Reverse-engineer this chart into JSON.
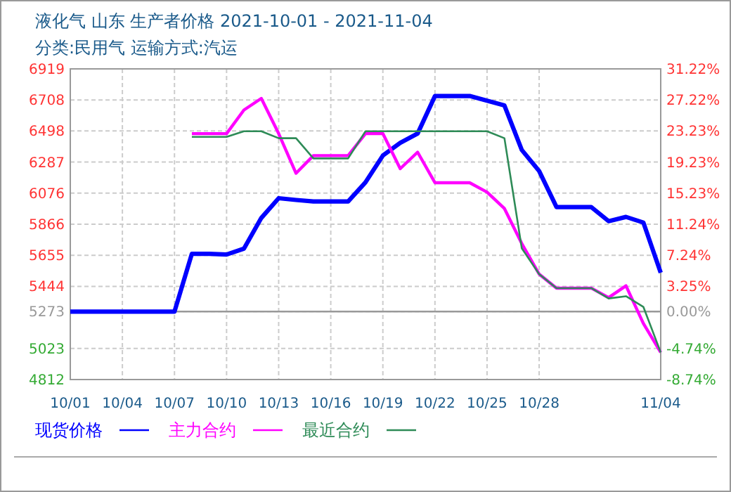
{
  "chart_data": {
    "type": "line",
    "title": "液化气 山东 生产者价格 2021-10-01 - 2021-11-04",
    "subtitle": "分类:民用气 运输方式:汽运",
    "x": [
      "2021-10-01",
      "2021-10-02",
      "2021-10-03",
      "2021-10-04",
      "2021-10-05",
      "2021-10-06",
      "2021-10-07",
      "2021-10-08",
      "2021-10-09",
      "2021-10-10",
      "2021-10-11",
      "2021-10-12",
      "2021-10-13",
      "2021-10-14",
      "2021-10-15",
      "2021-10-16",
      "2021-10-17",
      "2021-10-18",
      "2021-10-19",
      "2021-10-20",
      "2021-10-21",
      "2021-10-22",
      "2021-10-23",
      "2021-10-24",
      "2021-10-25",
      "2021-10-26",
      "2021-10-27",
      "2021-10-28",
      "2021-10-29",
      "2021-10-30",
      "2021-10-31",
      "2021-11-01",
      "2021-11-02",
      "2021-11-03",
      "2021-11-04"
    ],
    "series": [
      {
        "name": "现货价格",
        "color": "#0000ff",
        "values": [
          5273,
          5273,
          5273,
          5273,
          5273,
          5273,
          5273,
          5665,
          5665,
          5660,
          5700,
          5908,
          6042,
          6030,
          6020,
          6020,
          6020,
          6150,
          6331,
          6417,
          6480,
          6735,
          6735,
          6735,
          6703,
          6671,
          6369,
          6226,
          5982,
          5982,
          5982,
          5886,
          5915,
          5877,
          5537
        ]
      },
      {
        "name": "主力合约",
        "color": "#ff00ff",
        "values": [
          null,
          null,
          null,
          null,
          null,
          null,
          null,
          6480,
          6480,
          6480,
          6640,
          6719,
          6480,
          6211,
          6331,
          6331,
          6331,
          6480,
          6480,
          6242,
          6354,
          6147,
          6147,
          6147,
          6083,
          5972,
          5734,
          5527,
          5432,
          5432,
          5432,
          5368,
          5448,
          5193,
          4996
        ]
      },
      {
        "name": "最近合约",
        "color": "#2e8b57",
        "values": [
          null,
          null,
          null,
          null,
          null,
          null,
          null,
          6458,
          6458,
          6458,
          6496,
          6496,
          6449,
          6449,
          6312,
          6312,
          6312,
          6496,
          6496,
          6496,
          6496,
          6496,
          6496,
          6496,
          6496,
          6449,
          5702,
          5527,
          5432,
          5432,
          5432,
          5362,
          5377,
          5305,
          4996
        ]
      }
    ],
    "xlim": [
      "2021-10-01",
      "2021-11-04"
    ],
    "xticks": [
      {
        "value": "2021-10-01",
        "label": "10/01"
      },
      {
        "value": "2021-10-04",
        "label": "10/04"
      },
      {
        "value": "2021-10-07",
        "label": "10/07"
      },
      {
        "value": "2021-10-10",
        "label": "10/10"
      },
      {
        "value": "2021-10-13",
        "label": "10/13"
      },
      {
        "value": "2021-10-16",
        "label": "10/16"
      },
      {
        "value": "2021-10-19",
        "label": "10/19"
      },
      {
        "value": "2021-10-22",
        "label": "10/22"
      },
      {
        "value": "2021-10-25",
        "label": "10/25"
      },
      {
        "value": "2021-10-28",
        "label": "10/28"
      },
      {
        "value": "2021-11-04",
        "label": "11/04"
      }
    ],
    "ylim": [
      4812,
      6919
    ],
    "yticks": [
      4812,
      5023,
      5273,
      5444,
      5655,
      5866,
      6076,
      6287,
      6498,
      6708,
      6919
    ],
    "y2lim": [
      -8.74,
      31.22
    ],
    "y2ticks": [
      {
        "value": -8.74,
        "label": "-8.74%"
      },
      {
        "value": -4.74,
        "label": "-4.74%"
      },
      {
        "value": 0,
        "label": "0.00%"
      },
      {
        "value": 3.25,
        "label": "3.25%"
      },
      {
        "value": 7.24,
        "label": "7.24%"
      },
      {
        "value": 11.24,
        "label": "11.24%"
      },
      {
        "value": 15.23,
        "label": "15.23%"
      },
      {
        "value": 19.23,
        "label": "19.23%"
      },
      {
        "value": 23.23,
        "label": "23.23%"
      },
      {
        "value": 27.22,
        "label": "27.22%"
      },
      {
        "value": 31.22,
        "label": "31.22%"
      }
    ],
    "ref_lines": [
      {
        "axis": "y",
        "value": 5273,
        "color": "#999999"
      }
    ],
    "grid": true,
    "legend": "bottom",
    "line_style": "solid"
  }
}
